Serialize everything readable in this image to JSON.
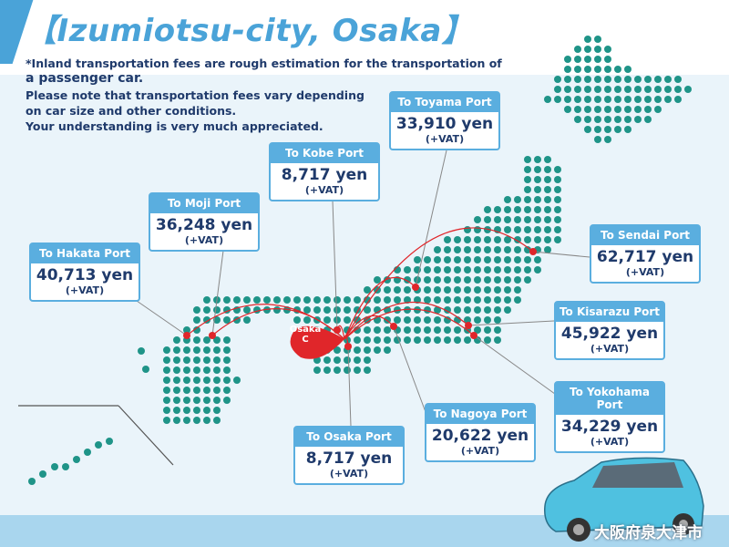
{
  "header": {
    "title": "【Izumiotsu-city, Osaka】",
    "note_line1": "*Inland transportation fees are rough estimation for the transportation of",
    "note_line2": "a passenger car.",
    "note_line3": "Please note that transportation fees vary depending",
    "note_line4": "on car size and other conditions.",
    "note_line5": "Your understanding is very much appreciated."
  },
  "origin": {
    "line1": "Osaka",
    "line2": "C"
  },
  "ports": [
    {
      "name": "To Hakata Port",
      "fee": "40,713 yen",
      "vat": "(+VAT)"
    },
    {
      "name": "To Moji Port",
      "fee": "36,248 yen",
      "vat": "(+VAT)"
    },
    {
      "name": "To Kobe Port",
      "fee": "8,717 yen",
      "vat": "(+VAT)"
    },
    {
      "name": "To Toyama Port",
      "fee": "33,910 yen",
      "vat": "(+VAT)"
    },
    {
      "name": "To Sendai Port",
      "fee": "62,717 yen",
      "vat": "(+VAT)"
    },
    {
      "name": "To Kisarazu Port",
      "fee": "45,922 yen",
      "vat": "(+VAT)"
    },
    {
      "name": "To Yokohama Port",
      "fee": "34,229 yen",
      "vat": "(+VAT)"
    },
    {
      "name": "To Nagoya Port",
      "fee": "20,622 yen",
      "vat": "(+VAT)"
    },
    {
      "name": "To Osaka Port",
      "fee": "8,717 yen",
      "vat": "(+VAT)"
    }
  ],
  "footer": {
    "city_jp": "大阪府泉大津市"
  },
  "colors": {
    "accent": "#4aa3d8",
    "dots": "#1f9488",
    "route": "#e0262a",
    "text": "#1f3a6b"
  }
}
